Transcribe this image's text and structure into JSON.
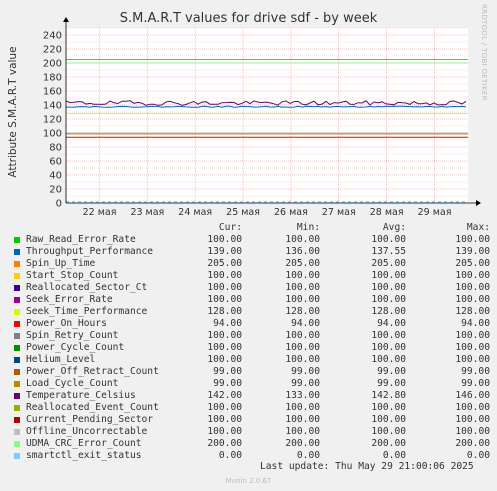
{
  "chart_data": {
    "type": "line",
    "title": "S.M.A.R.T values for drive sdf - by week",
    "ylabel": "Attribute S.M.A.R.T value",
    "ylim": [
      0,
      250
    ],
    "yticks": [
      0,
      20,
      40,
      60,
      80,
      100,
      120,
      140,
      160,
      180,
      200,
      220,
      240
    ],
    "xlabels": [
      "22 мая",
      "23 мая",
      "24 мая",
      "25 мая",
      "26 мая",
      "27 мая",
      "28 мая",
      "29 мая"
    ],
    "grid": true,
    "columns": [
      "Cur:",
      "Min:",
      "Avg:",
      "Max:"
    ],
    "series": [
      {
        "name": "Raw_Read_Error_Rate",
        "color": "#00cc00",
        "cur": "100.00",
        "min": "100.00",
        "avg": "100.00",
        "max": "100.00",
        "value": 100
      },
      {
        "name": "Throughput_Performance",
        "color": "#0066b3",
        "cur": "139.00",
        "min": "136.00",
        "avg": "137.55",
        "max": "139.00",
        "value": 137.55
      },
      {
        "name": "Spin_Up_Time",
        "color": "#ff8000",
        "cur": "205.00",
        "min": "205.00",
        "avg": "205.00",
        "max": "205.00",
        "value": 205
      },
      {
        "name": "Start_Stop_Count",
        "color": "#ffcc00",
        "cur": "100.00",
        "min": "100.00",
        "avg": "100.00",
        "max": "100.00",
        "value": 100
      },
      {
        "name": "Reallocated_Sector_Ct",
        "color": "#330099",
        "cur": "100.00",
        "min": "100.00",
        "avg": "100.00",
        "max": "100.00",
        "value": 100
      },
      {
        "name": "Seek_Error_Rate",
        "color": "#990099",
        "cur": "100.00",
        "min": "100.00",
        "avg": "100.00",
        "max": "100.00",
        "value": 100
      },
      {
        "name": "Seek_Time_Performance",
        "color": "#ccff00",
        "cur": "128.00",
        "min": "128.00",
        "avg": "128.00",
        "max": "128.00",
        "value": 128
      },
      {
        "name": "Power_On_Hours",
        "color": "#ff0000",
        "cur": "94.00",
        "min": "94.00",
        "avg": "94.00",
        "max": "94.00",
        "value": 94
      },
      {
        "name": "Spin_Retry_Count",
        "color": "#808080",
        "cur": "100.00",
        "min": "100.00",
        "avg": "100.00",
        "max": "100.00",
        "value": 100
      },
      {
        "name": "Power_Cycle_Count",
        "color": "#008f00",
        "cur": "100.00",
        "min": "100.00",
        "avg": "100.00",
        "max": "100.00",
        "value": 100
      },
      {
        "name": "Helium_Level",
        "color": "#00487d",
        "cur": "100.00",
        "min": "100.00",
        "avg": "100.00",
        "max": "100.00",
        "value": 100
      },
      {
        "name": "Power_Off_Retract_Count",
        "color": "#b35a00",
        "cur": "99.00",
        "min": "99.00",
        "avg": "99.00",
        "max": "99.00",
        "value": 99
      },
      {
        "name": "Load_Cycle_Count",
        "color": "#b38f00",
        "cur": "99.00",
        "min": "99.00",
        "avg": "99.00",
        "max": "99.00",
        "value": 99
      },
      {
        "name": "Temperature_Celsius",
        "color": "#6b006b",
        "cur": "142.00",
        "min": "133.00",
        "avg": "142.80",
        "max": "146.00",
        "value": 142.8
      },
      {
        "name": "Reallocated_Event_Count",
        "color": "#8fb300",
        "cur": "100.00",
        "min": "100.00",
        "avg": "100.00",
        "max": "100.00",
        "value": 100
      },
      {
        "name": "Current_Pending_Sector",
        "color": "#b30000",
        "cur": "100.00",
        "min": "100.00",
        "avg": "100.00",
        "max": "100.00",
        "value": 100
      },
      {
        "name": "Offline_Uncorrectable",
        "color": "#bebebe",
        "cur": "100.00",
        "min": "100.00",
        "avg": "100.00",
        "max": "100.00",
        "value": 100
      },
      {
        "name": "UDMA_CRC_Error_Count",
        "color": "#80ff80",
        "cur": "200.00",
        "min": "200.00",
        "avg": "200.00",
        "max": "200.00",
        "value": 200
      },
      {
        "name": "smartctl_exit_status",
        "color": "#80c9ff",
        "cur": "0.00",
        "min": "0.00",
        "avg": "0.00",
        "max": "0.00",
        "value": 0
      }
    ]
  },
  "side_label": "RRDTOOL / TOBI OETIKER",
  "last_update": "Last update: Thu May 29 21:00:06 2025",
  "version": "Munin 2.0.67"
}
